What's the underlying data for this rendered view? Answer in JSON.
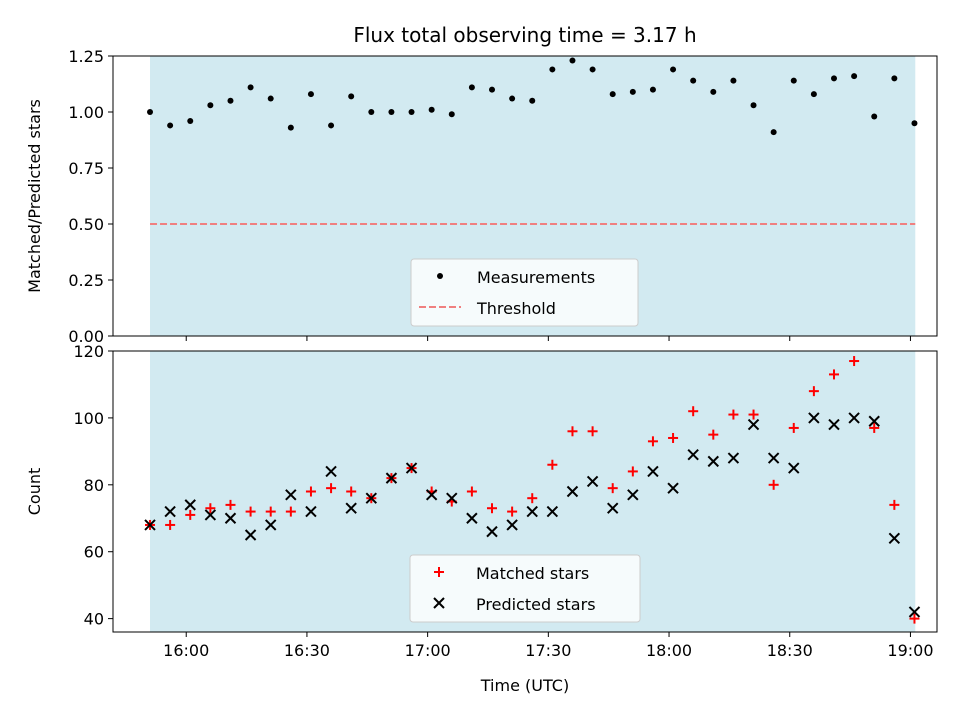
{
  "chart_data": {
    "title": "Flux total observing time = 3.17 h",
    "xlabel": "Time (UTC)",
    "x_tick_labels": [
      "16:00",
      "16:30",
      "17:00",
      "17:30",
      "18:00",
      "18:30",
      "19:00"
    ],
    "x_tick_minutes": [
      960,
      990,
      1020,
      1050,
      1080,
      1110,
      1140
    ],
    "xlim_minutes": [
      941.8,
      1146.6
    ],
    "observing_window_minutes": [
      951,
      1141.2
    ],
    "time_minutes": [
      951,
      956,
      961,
      966,
      971,
      976,
      981,
      986,
      991,
      996,
      1001,
      1006,
      1011,
      1016,
      1021,
      1026,
      1031,
      1036,
      1041,
      1046,
      1051,
      1056,
      1061,
      1066,
      1071,
      1076,
      1081,
      1086,
      1091,
      1096,
      1101,
      1106,
      1111,
      1116,
      1121,
      1126,
      1131,
      1136,
      1141
    ],
    "shade_color": "#add8e6",
    "plots": [
      {
        "type": "scatter",
        "ylabel": "Matched/Predicted stars",
        "ylim": [
          0,
          1.25
        ],
        "y_ticks": [
          0.0,
          0.25,
          0.5,
          0.75,
          1.0,
          1.25
        ],
        "y_tick_labels": [
          "0.00",
          "0.25",
          "0.50",
          "0.75",
          "1.00",
          "1.25"
        ],
        "threshold": 0.5,
        "legend": {
          "position": "lower center",
          "entries": [
            "Measurements",
            "Threshold"
          ]
        },
        "series": [
          {
            "name": "Measurements",
            "color": "#000000",
            "marker": "dot",
            "values": [
              1.0,
              0.94,
              0.96,
              1.03,
              1.05,
              1.11,
              1.06,
              0.93,
              1.08,
              0.94,
              1.07,
              1.0,
              1.0,
              1.0,
              1.01,
              0.99,
              1.11,
              1.1,
              1.06,
              1.05,
              1.19,
              1.23,
              1.19,
              1.08,
              1.09,
              1.1,
              1.19,
              1.14,
              1.09,
              1.14,
              1.03,
              0.91,
              1.14,
              1.08,
              1.15,
              1.16,
              0.98,
              1.15,
              0.95
            ]
          },
          {
            "name": "Threshold",
            "color": "#f08080",
            "marker": "dashed-line",
            "values": [
              0.5
            ]
          }
        ]
      },
      {
        "type": "scatter",
        "ylabel": "Count",
        "ylim": [
          36,
          120
        ],
        "y_ticks": [
          40,
          60,
          80,
          100,
          120
        ],
        "y_tick_labels": [
          "40",
          "60",
          "80",
          "100",
          "120"
        ],
        "legend": {
          "position": "lower center",
          "entries": [
            "Matched stars",
            "Predicted stars"
          ]
        },
        "series": [
          {
            "name": "Matched stars",
            "color": "#ff0000",
            "marker": "plus",
            "values": [
              68,
              68,
              71,
              73,
              74,
              72,
              72,
              72,
              78,
              79,
              78,
              76,
              82,
              85,
              78,
              75,
              78,
              73,
              72,
              76,
              86,
              96,
              96,
              79,
              84,
              93,
              94,
              102,
              95,
              101,
              101,
              80,
              97,
              108,
              113,
              117,
              97,
              74,
              40
            ]
          },
          {
            "name": "Predicted stars",
            "color": "#000000",
            "marker": "x",
            "values": [
              68,
              72,
              74,
              71,
              70,
              65,
              68,
              77,
              72,
              84,
              73,
              76,
              82,
              85,
              77,
              76,
              70,
              66,
              68,
              72,
              72,
              78,
              81,
              73,
              77,
              84,
              79,
              89,
              87,
              88,
              98,
              88,
              85,
              100,
              98,
              100,
              99,
              64,
              42
            ]
          }
        ]
      }
    ]
  }
}
